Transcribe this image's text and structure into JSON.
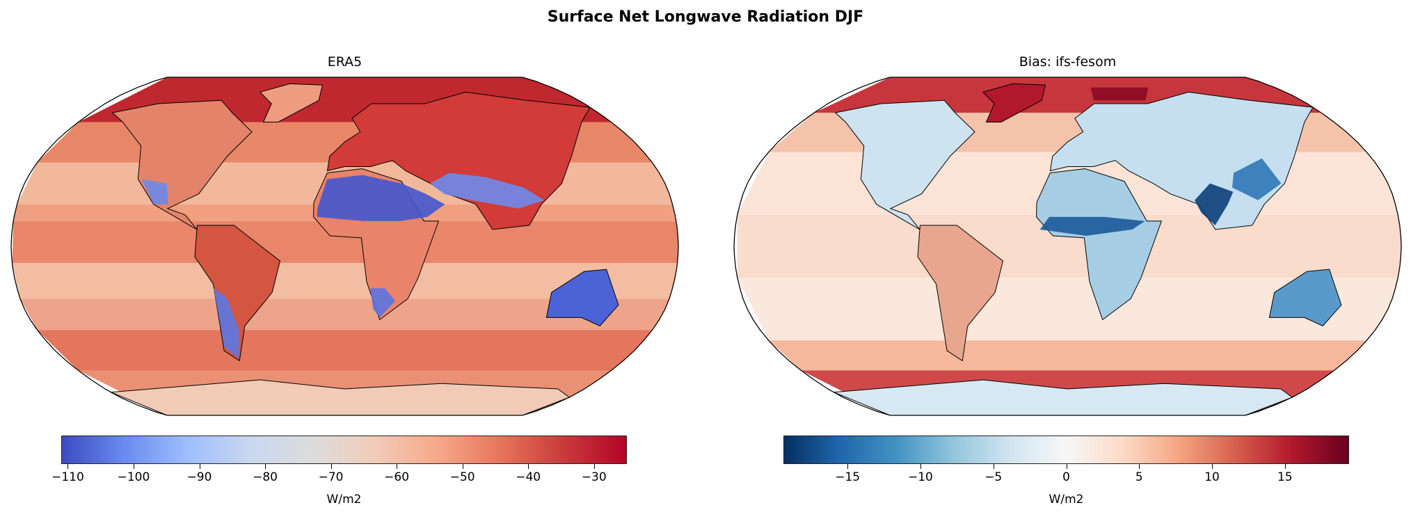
{
  "title": "Surface Net Longwave Radiation DJF",
  "panels": [
    {
      "title": "ERA5",
      "colormap": "coolwarm",
      "colorbar": {
        "label": "W/m2",
        "range": [
          -111,
          -25
        ],
        "ticks": [
          -110,
          -100,
          -90,
          -80,
          -70,
          -60,
          -50,
          -40,
          -30
        ],
        "tick_labels": [
          "−110",
          "−100",
          "−90",
          "−80",
          "−70",
          "−60",
          "−50",
          "−40",
          "−30"
        ],
        "colors": [
          "#3b4cc0",
          "#6a8bef",
          "#9ebeff",
          "#c9d7f0",
          "#dddcdc",
          "#f2cbb7",
          "#f7a889",
          "#e7745b",
          "#c93b3a",
          "#b40426"
        ]
      }
    },
    {
      "title": "Bias: ifs-fesom",
      "colormap": "RdBu_r",
      "colorbar": {
        "label": "W/m2",
        "range": [
          -19.4,
          19.4
        ],
        "ticks": [
          -15,
          -10,
          -5,
          0,
          5,
          10,
          15
        ],
        "tick_labels": [
          "−15",
          "−10",
          "−5",
          "0",
          "5",
          "10",
          "15"
        ],
        "colors": [
          "#053061",
          "#2166ac",
          "#4393c3",
          "#92c5de",
          "#d1e5f0",
          "#f7f7f7",
          "#fddbc7",
          "#f4a582",
          "#d6604d",
          "#b2182b",
          "#67001f"
        ]
      }
    }
  ]
}
